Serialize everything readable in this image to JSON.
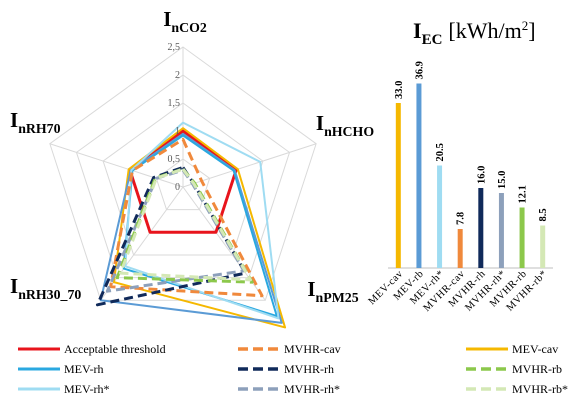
{
  "chart_data": [
    {
      "type": "radar",
      "axes": [
        {
          "main": "I",
          "sub": "nCO2"
        },
        {
          "main": "I",
          "sub": "nHCHO"
        },
        {
          "main": "I",
          "sub": "nPM25"
        },
        {
          "main": "I",
          "sub": "nRH30_70"
        },
        {
          "main": "I",
          "sub": "nRH70"
        }
      ],
      "rlim": [
        0,
        2.5
      ],
      "ticks": [
        "0",
        "0,5",
        "1",
        "1,5",
        "2",
        "2,5"
      ],
      "tick_values": [
        0,
        0.5,
        1,
        1.5,
        2,
        2.5
      ],
      "series": [
        {
          "name": "Acceptable threshold",
          "color": "#e8141c",
          "dash": "solid",
          "width": 3,
          "values": [
            1,
            1,
            1,
            1,
            1
          ]
        },
        {
          "name": "MEV-cav",
          "color": "#f5b800",
          "dash": "solid",
          "width": 2,
          "values": [
            1.05,
            1.03,
            3.1,
            2.1,
            1.02
          ]
        },
        {
          "name": "MEV-rb",
          "color": "#5b9bd5",
          "dash": "solid",
          "width": 2,
          "values": [
            0.95,
            0.97,
            3.0,
            2.5,
            0.98
          ]
        },
        {
          "name": "MEV-rh",
          "color": "#2aa8e0",
          "dash": "solid",
          "width": 2,
          "values": [
            0.92,
            0.95,
            2.85,
            1.8,
            0.95
          ]
        },
        {
          "name": "MEV-rh*",
          "color": "#9fdcf2",
          "dash": "solid",
          "width": 2,
          "values": [
            1.15,
            1.45,
            2.9,
            1.75,
            0.97
          ]
        },
        {
          "name": "MVHR-cav",
          "color": "#f0893c",
          "dash": "dashed",
          "width": 3,
          "values": [
            0.85,
            0.35,
            2.4,
            2.2,
            0.95
          ]
        },
        {
          "name": "MVHR-rh",
          "color": "#102a5a",
          "dash": "dashed",
          "width": 3,
          "values": [
            0.35,
            0.2,
            1.9,
            2.6,
            0.55
          ]
        },
        {
          "name": "MVHR-rh*",
          "color": "#8da0bb",
          "dash": "dashed",
          "width": 3,
          "values": [
            0.3,
            0.18,
            1.85,
            2.3,
            0.5
          ]
        },
        {
          "name": "MVHR-rb",
          "color": "#8cc84b",
          "dash": "dashed",
          "width": 3,
          "values": [
            0.32,
            0.22,
            2.1,
            2.0,
            0.52
          ]
        },
        {
          "name": "MVHR-rb*",
          "color": "#d4e8b5",
          "dash": "dashed",
          "width": 3,
          "values": [
            0.32,
            0.2,
            2.05,
            1.9,
            0.5
          ]
        }
      ]
    },
    {
      "type": "bar",
      "title": {
        "main": "I",
        "sub": "EC",
        "unit": "[kWh/m",
        "sup": "2",
        "close": "]"
      },
      "categories": [
        "MEV-cav",
        "MEV-rb",
        "MEV-rh*",
        "MVHR-cav",
        "MVHR-rh",
        "MVHR-rh*",
        "MVHR-rb",
        "MVHR-rb*"
      ],
      "values": [
        33.0,
        36.9,
        20.5,
        7.8,
        16.0,
        15.0,
        12.1,
        8.5
      ],
      "labels": [
        "33.0",
        "36.9",
        "20.5",
        "7.8",
        "16.0",
        "15.0",
        "12.1",
        "8.5"
      ],
      "colors": [
        "#f5b800",
        "#5b9bd5",
        "#9fdcf2",
        "#f0893c",
        "#102a5a",
        "#8da0bb",
        "#8cc84b",
        "#d4e8b5"
      ],
      "ylim": [
        0,
        42
      ]
    }
  ],
  "legend": [
    {
      "name": "Acceptable threshold",
      "color": "#e8141c",
      "dash": "solid"
    },
    {
      "name": "MVHR-cav",
      "color": "#f0893c",
      "dash": "dashed"
    },
    {
      "name": "MEV-cav",
      "color": "#f5b800",
      "dash": "solid"
    },
    {
      "name": "MEV-rh",
      "color": "#2aa8e0",
      "dash": "solid"
    },
    {
      "name": "MVHR-rh",
      "color": "#102a5a",
      "dash": "dashed"
    },
    {
      "name": "MVHR-rb",
      "color": "#8cc84b",
      "dash": "dashed"
    },
    {
      "name": "MEV-rh*",
      "color": "#9fdcf2",
      "dash": "solid"
    },
    {
      "name": "MVHR-rh*",
      "color": "#8da0bb",
      "dash": "dashed"
    },
    {
      "name": "MVHR-rb*",
      "color": "#d4e8b5",
      "dash": "dashed"
    }
  ]
}
